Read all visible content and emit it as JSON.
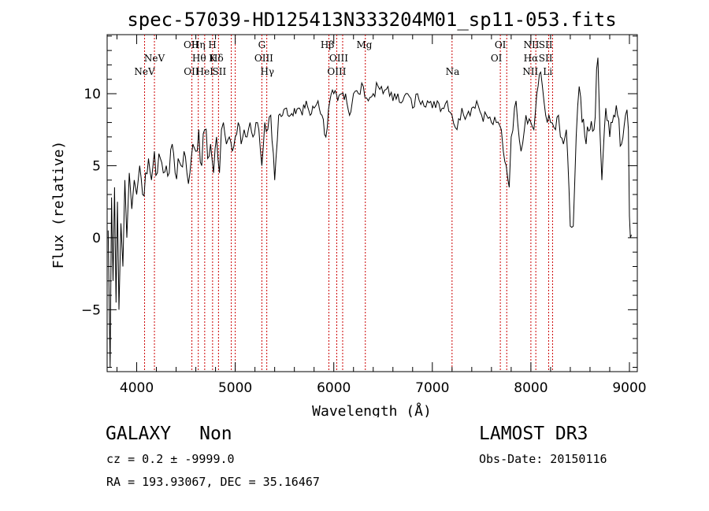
{
  "chart_data": {
    "type": "line",
    "title": "spec-57039-HD125413N333204M01_sp11-053.fits",
    "xlabel": "Wavelength (Å)",
    "ylabel": "Flux (relative)",
    "xlim": [
      3700,
      9080
    ],
    "ylim": [
      -9.3,
      14.1
    ],
    "xticks": [
      4000,
      5000,
      6000,
      7000,
      8000,
      9000
    ],
    "yticks": [
      -5,
      0,
      5,
      10
    ],
    "grid": false,
    "line_color": "#000000",
    "marker_color": "#cc0000",
    "series": [
      {
        "name": "flux",
        "x": [
          3710,
          3730,
          3745,
          3760,
          3775,
          3790,
          3805,
          3820,
          3840,
          3860,
          3880,
          3900,
          3925,
          3950,
          3975,
          4000,
          4030,
          4060,
          4090,
          4120,
          4150,
          4180,
          4210,
          4240,
          4270,
          4300,
          4330,
          4360,
          4390,
          4420,
          4450,
          4480,
          4510,
          4540,
          4570,
          4600,
          4630,
          4660,
          4690,
          4720,
          4750,
          4780,
          4810,
          4840,
          4860,
          4880,
          4910,
          4940,
          4970,
          5000,
          5030,
          5060,
          5090,
          5120,
          5150,
          5180,
          5210,
          5240,
          5270,
          5300,
          5330,
          5360,
          5400,
          5440,
          5480,
          5520,
          5560,
          5600,
          5640,
          5680,
          5720,
          5760,
          5800,
          5840,
          5880,
          5920,
          5960,
          6000,
          6040,
          6080,
          6120,
          6160,
          6200,
          6250,
          6300,
          6350,
          6400,
          6450,
          6500,
          6550,
          6600,
          6650,
          6700,
          6750,
          6800,
          6850,
          6900,
          6950,
          7000,
          7050,
          7100,
          7150,
          7200,
          7250,
          7300,
          7350,
          7400,
          7450,
          7500,
          7550,
          7600,
          7650,
          7700,
          7720,
          7750,
          7780,
          7800,
          7850,
          7900,
          7950,
          8000,
          8030,
          8060,
          8100,
          8150,
          8200,
          8250,
          8280,
          8300,
          8330,
          8360,
          8400,
          8430,
          8460,
          8490,
          8520,
          8560,
          8600,
          8640,
          8680,
          8700,
          8720,
          8760,
          8800,
          8840,
          8880,
          8920,
          8960,
          8990,
          9000,
          9010,
          9020
        ],
        "y": [
          0.5,
          -9.0,
          2.8,
          -3.0,
          3.5,
          -4.5,
          2.5,
          -5.0,
          1.0,
          -2.0,
          4.0,
          0.0,
          4.5,
          2.0,
          4.0,
          3.0,
          5.0,
          3.0,
          4.5,
          5.5,
          4.0,
          6.0,
          4.5,
          5.5,
          4.5,
          5.0,
          4.5,
          6.5,
          4.5,
          5.5,
          5.0,
          6.0,
          4.5,
          4.5,
          6.5,
          6.0,
          7.5,
          5.0,
          7.5,
          5.5,
          6.5,
          4.5,
          7.0,
          4.5,
          7.5,
          8.0,
          6.5,
          7.0,
          6.0,
          7.0,
          8.0,
          6.5,
          7.5,
          7.0,
          8.0,
          7.0,
          8.0,
          7.5,
          5.0,
          8.0,
          7.5,
          8.5,
          4.0,
          8.5,
          8.5,
          9.0,
          8.5,
          9.0,
          9.0,
          8.5,
          9.5,
          8.5,
          9.0,
          9.5,
          8.5,
          7.0,
          9.5,
          10.0,
          9.5,
          10.0,
          10.0,
          8.5,
          10.0,
          10.0,
          10.5,
          9.5,
          10.0,
          10.5,
          10.0,
          10.5,
          9.5,
          10.0,
          9.5,
          10.0,
          9.0,
          10.0,
          9.5,
          9.5,
          9.0,
          9.5,
          9.0,
          9.5,
          8.5,
          7.5,
          9.0,
          8.5,
          9.0,
          9.5,
          8.5,
          8.5,
          8.0,
          8.0,
          7.5,
          6.0,
          5.0,
          3.5,
          7.0,
          9.5,
          6.0,
          8.5,
          8.0,
          7.5,
          10.0,
          11.5,
          8.5,
          8.0,
          7.5,
          8.5,
          7.0,
          6.5,
          7.5,
          0.8,
          0.8,
          7.0,
          10.5,
          8.0,
          6.5,
          7.5,
          7.5,
          12.5,
          7.5,
          4.0,
          9.0,
          7.0,
          8.5,
          8.5,
          6.5,
          8.5,
          7.5,
          1.5,
          0.0,
          0.2
        ]
      }
    ],
    "line_markers": [
      {
        "x": 4080,
        "label": "NeV",
        "row": 3
      },
      {
        "x": 4180,
        "label": "NeV",
        "row": 2
      },
      {
        "x": 4553,
        "label": "OII",
        "row": 1
      },
      {
        "x": 4555,
        "label": "OII",
        "row": 3
      },
      {
        "x": 4625,
        "label": "Hη",
        "row": 1
      },
      {
        "x": 4633,
        "label": "Hθ",
        "row": 2
      },
      {
        "x": 4690,
        "label": "HeI",
        "row": 3
      },
      {
        "x": 4768,
        "label": "H",
        "row": 1
      },
      {
        "x": 4768,
        "label": "K",
        "row": 2
      },
      {
        "x": 4810,
        "label": "Hδ",
        "row": 2
      },
      {
        "x": 4838,
        "label": "SII",
        "row": 3
      },
      {
        "x": 5270,
        "label": "G",
        "row": 1
      },
      {
        "x": 5290,
        "label": "OIII",
        "row": 2
      },
      {
        "x": 5325,
        "label": "Hγ",
        "row": 3
      },
      {
        "x": 5935,
        "label": "Hβ",
        "row": 1
      },
      {
        "x": 6050,
        "label": "OIII",
        "row": 2
      },
      {
        "x": 6030,
        "label": "OIII",
        "row": 3
      },
      {
        "x": 6310,
        "label": "Mg",
        "row": 1
      },
      {
        "x": 7205,
        "label": "Na",
        "row": 3
      },
      {
        "x": 7690,
        "label": "OI",
        "row": 1
      },
      {
        "x": 7650,
        "label": "OI",
        "row": 2
      },
      {
        "x": 8005,
        "label": "NII",
        "row": 1
      },
      {
        "x": 8000,
        "label": "Hα",
        "row": 2
      },
      {
        "x": 7995,
        "label": "NII",
        "row": 3
      },
      {
        "x": 8150,
        "label": "SII",
        "row": 1
      },
      {
        "x": 8150,
        "label": "SII",
        "row": 2
      },
      {
        "x": 8170,
        "label": "Li",
        "row": 3
      }
    ],
    "marker_lines_x": [
      4080,
      4180,
      4560,
      4625,
      4690,
      4770,
      4830,
      4960,
      5000,
      5270,
      5320,
      5950,
      6030,
      6090,
      6320,
      7200,
      7690,
      7755,
      8000,
      8050,
      8180,
      8220
    ]
  },
  "info": {
    "object_class": "GALAXY",
    "subclass": "Non",
    "cz": "cz = 0.2 ± -9999.0",
    "radec": "RA = 193.93067, DEC =  35.16467",
    "survey": "LAMOST DR3",
    "obs_date": "Obs-Date: 20150116"
  }
}
